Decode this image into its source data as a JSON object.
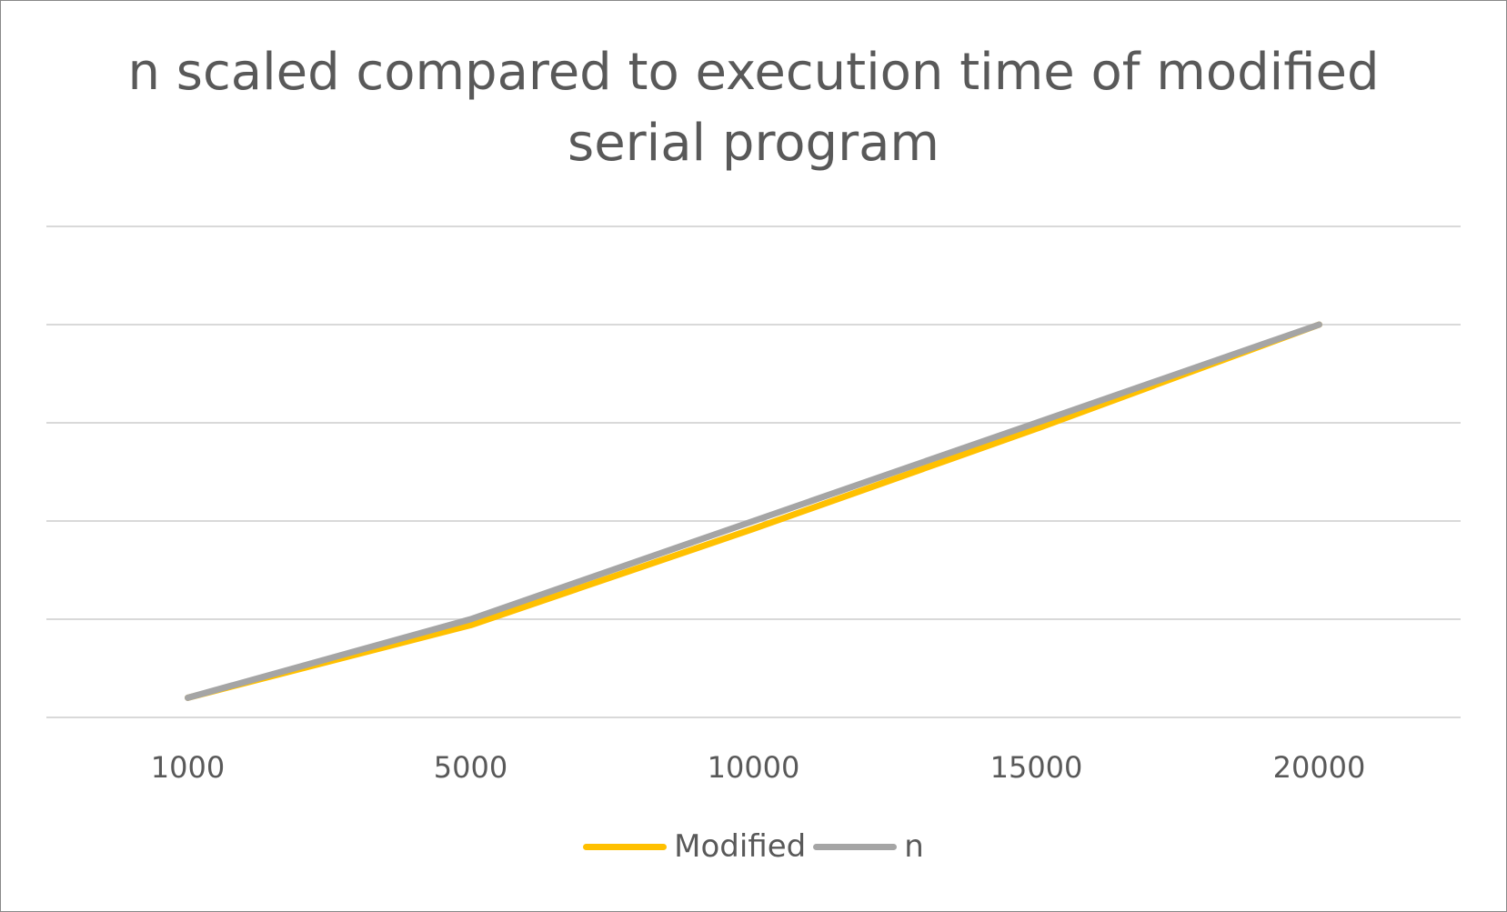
{
  "chart_data": {
    "type": "line",
    "title": "n scaled compared to execution time of modified serial program",
    "categories": [
      "1000",
      "5000",
      "10000",
      "15000",
      "20000"
    ],
    "series": [
      {
        "name": "Modified",
        "color": "#FFC000",
        "values": [
          1000,
          4700,
          9600,
          14700,
          20000
        ]
      },
      {
        "name": "n",
        "color": "#A5A5A5",
        "values": [
          1000,
          5000,
          10000,
          15000,
          20000
        ]
      }
    ],
    "ylim": [
      0,
      25000
    ],
    "y_gridlines": [
      0,
      5000,
      10000,
      15000,
      20000,
      25000
    ],
    "y_tick_labels_visible": false,
    "grid": true,
    "legend_position": "bottom",
    "xlabel": "",
    "ylabel": ""
  }
}
